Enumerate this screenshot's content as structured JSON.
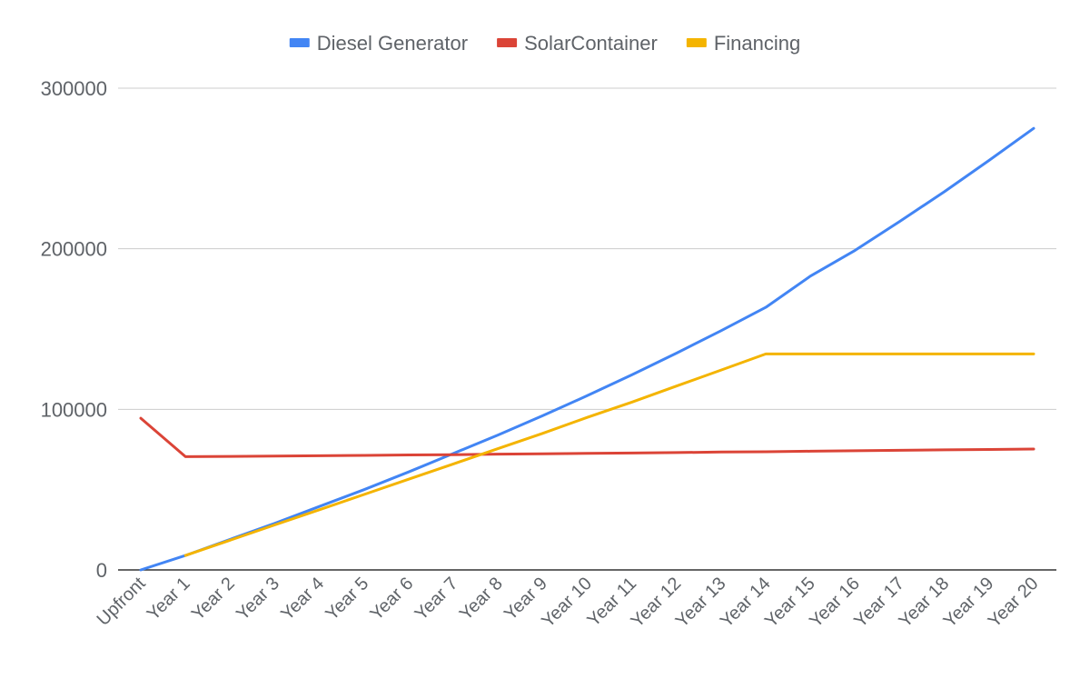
{
  "chart_data": {
    "type": "line",
    "title": "",
    "xlabel": "",
    "ylabel": "",
    "ylim": [
      0,
      300000
    ],
    "yticks": [
      0,
      100000,
      200000,
      300000
    ],
    "grid": true,
    "legend_position": "top-center",
    "categories": [
      "Upfront",
      "Year 1",
      "Year 2",
      "Year 3",
      "Year 4",
      "Year 5",
      "Year 6",
      "Year 7",
      "Year 8",
      "Year 9",
      "Year 10",
      "Year 11",
      "Year 12",
      "Year 13",
      "Year 14",
      "Year 15",
      "Year 16",
      "Year 17",
      "Year 18",
      "Year 19",
      "Year 20"
    ],
    "series": [
      {
        "name": "Diesel Generator",
        "color": "#4285f4",
        "values": [
          0,
          9000,
          19000,
          29000,
          39500,
          50000,
          61000,
          72500,
          84000,
          96000,
          108500,
          121500,
          135000,
          149000,
          163500,
          183000,
          199000,
          217000,
          235500,
          255000,
          275000
        ]
      },
      {
        "name": "SolarContainer",
        "color": "#db4437",
        "values": [
          94500,
          70500,
          70700,
          70900,
          71100,
          71300,
          71600,
          71800,
          72100,
          72300,
          72600,
          72800,
          73100,
          73400,
          73600,
          73900,
          74200,
          74500,
          74800,
          75000,
          75300
        ]
      },
      {
        "name": "Financing",
        "color": "#f4b400",
        "values": [
          null,
          9000,
          18500,
          28000,
          37500,
          47000,
          56500,
          66000,
          75500,
          85000,
          95000,
          104500,
          114500,
          124500,
          134500,
          134500,
          134500,
          134500,
          134500,
          134500,
          134500
        ]
      }
    ]
  }
}
